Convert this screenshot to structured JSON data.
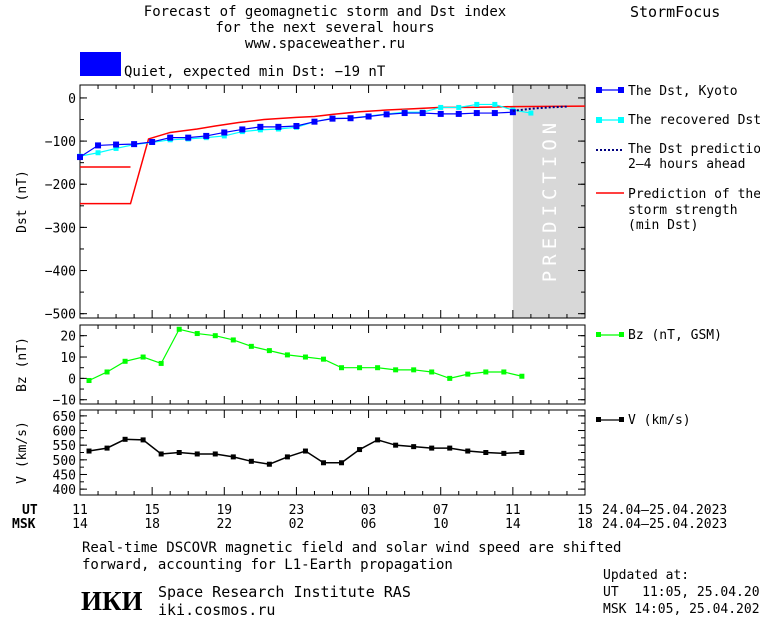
{
  "header": {
    "title_lines": [
      "Forecast of geomagnetic storm and Dst index",
      "for the next several hours",
      "www.spaceweather.ru"
    ],
    "brand": "StormFocus",
    "status_text": "Quiet, expected min Dst: −19 nT",
    "status_color": "#0000ff"
  },
  "prediction_label": "PREDICTION",
  "legend": {
    "dst_kyoto": "The Dst, Kyoto",
    "recovered": "The recovered Dst",
    "prediction_line1": "The Dst prediction",
    "prediction_line2": "2—4 hours ahead",
    "strength_line1": "Prediction of the",
    "strength_line2": "storm strength",
    "strength_line3": "(min Dst)",
    "bz": "Bz (nT, GSM)",
    "v": "V (km/s)"
  },
  "time_axis": {
    "ut_label": "UT",
    "msk_label": "MSK",
    "ut_ticks": [
      "11",
      "15",
      "19",
      "23",
      "03",
      "07",
      "11",
      "15"
    ],
    "msk_ticks": [
      "14",
      "18",
      "22",
      "02",
      "06",
      "10",
      "14",
      "18"
    ],
    "ut_range": "24.04—25.04.2023",
    "msk_range": "24.04—25.04.2023"
  },
  "footer": {
    "note_line1": "Real‐time DSCOVR magnetic field and solar wind speed are shifted",
    "note_line2": "forward, accounting for L1‐Earth propagation",
    "logo_text": "ИКИ",
    "institute": "Space Research Institute RAS",
    "website": "iki.cosmos.ru",
    "updated_label": "Updated at:",
    "updated_ut": "UT   11:05, 25.04.2023",
    "updated_msk": "MSK 14:05, 25.04.2023"
  },
  "chart_data": [
    {
      "type": "line",
      "ylabel": "Dst (nT)",
      "ylim": [
        -510,
        30
      ],
      "yticks": [
        0,
        -100,
        -200,
        -300,
        -400,
        -500
      ],
      "ytick_labels": [
        "0",
        "−100",
        "−200",
        "−300",
        "−400",
        "−500"
      ],
      "xlim_hours": [
        0,
        28
      ],
      "prediction_start_hour": 24,
      "series": [
        {
          "name": "The Dst, Kyoto",
          "color": "#0000ff",
          "x": [
            0,
            1,
            2,
            3,
            4,
            5,
            6,
            7,
            8,
            9,
            10,
            11,
            12,
            13,
            14,
            15,
            16,
            17,
            18,
            19,
            20,
            21,
            22,
            23,
            24
          ],
          "y": [
            -137,
            -110,
            -108,
            -107,
            -102,
            -92,
            -92,
            -88,
            -80,
            -73,
            -67,
            -67,
            -65,
            -55,
            -48,
            -47,
            -43,
            -38,
            -35,
            -35,
            -37,
            -37,
            -35,
            -35,
            -33
          ]
        },
        {
          "name": "The recovered Dst",
          "color": "#00ffff",
          "x": [
            0,
            1,
            2,
            3,
            4,
            5,
            6,
            7,
            8,
            9,
            10,
            11,
            12,
            13,
            14,
            15,
            16,
            17,
            18,
            19,
            20,
            21,
            22,
            23,
            24,
            25
          ],
          "y": [
            -135,
            -127,
            -117,
            -108,
            -103,
            -97,
            -95,
            -92,
            -88,
            -78,
            -74,
            -72,
            -68,
            -55,
            -47,
            -47,
            -42,
            -37,
            -33,
            -33,
            -22,
            -22,
            -15,
            -15,
            -28,
            -35
          ]
        },
        {
          "name": "The Dst prediction 2—4 hours ahead",
          "color": "#000080",
          "x": [
            24,
            25,
            26,
            27
          ],
          "y": [
            -30,
            -25,
            -22,
            -20
          ]
        },
        {
          "name": "Prediction of the storm strength (min Dst)",
          "color": "#ff0000",
          "segments": [
            {
              "x": [
                0,
                2.8
              ],
              "y": [
                -160,
                -160
              ]
            },
            {
              "x": [
                0,
                2.8,
                3.8,
                5,
                6.5,
                7.5,
                8.8,
                10.2,
                12,
                13,
                14,
                15.5,
                17,
                18.5,
                20,
                21.5,
                23,
                24,
                28
              ],
              "y": [
                -245,
                -245,
                -95,
                -80,
                -72,
                -65,
                -57,
                -50,
                -45,
                -43,
                -38,
                -32,
                -28,
                -25,
                -22,
                -22,
                -21,
                -20,
                -19
              ]
            }
          ]
        }
      ]
    },
    {
      "type": "line",
      "ylabel": "Bz (nT)",
      "ylim": [
        -12,
        25
      ],
      "yticks": [
        20,
        10,
        0,
        -10
      ],
      "ytick_labels": [
        "20",
        "10",
        "0",
        "−10"
      ],
      "series": [
        {
          "name": "Bz (nT, GSM)",
          "color": "#00ff00",
          "x": [
            0.5,
            1.5,
            2.5,
            3.5,
            4.5,
            5.5,
            6.5,
            7.5,
            8.5,
            9.5,
            10.5,
            11.5,
            12.5,
            13.5,
            14.5,
            15.5,
            16.5,
            17.5,
            18.5,
            19.5,
            20.5,
            21.5,
            22.5,
            23.5,
            24.5
          ],
          "y": [
            -1,
            3,
            8,
            10,
            7,
            23,
            21,
            20,
            18,
            15,
            13,
            11,
            10,
            9,
            5,
            5,
            5,
            4,
            4,
            3,
            0,
            2,
            3,
            3,
            1
          ]
        }
      ]
    },
    {
      "type": "line",
      "ylabel": "V (km/s)",
      "ylim": [
        380,
        670
      ],
      "yticks": [
        650,
        600,
        550,
        500,
        450,
        400
      ],
      "ytick_labels": [
        "650",
        "600",
        "550",
        "500",
        "450",
        "400"
      ],
      "series": [
        {
          "name": "V (km/s)",
          "color": "#000000",
          "x": [
            0.5,
            1.5,
            2.5,
            3.5,
            4.5,
            5.5,
            6.5,
            7.5,
            8.5,
            9.5,
            10.5,
            11.5,
            12.5,
            13.5,
            14.5,
            15.5,
            16.5,
            17.5,
            18.5,
            19.5,
            20.5,
            21.5,
            22.5,
            23.5,
            24.5
          ],
          "y": [
            530,
            540,
            570,
            568,
            520,
            525,
            520,
            520,
            510,
            495,
            485,
            510,
            530,
            490,
            490,
            535,
            568,
            550,
            545,
            540,
            540,
            530,
            525,
            522,
            525
          ]
        }
      ]
    }
  ]
}
